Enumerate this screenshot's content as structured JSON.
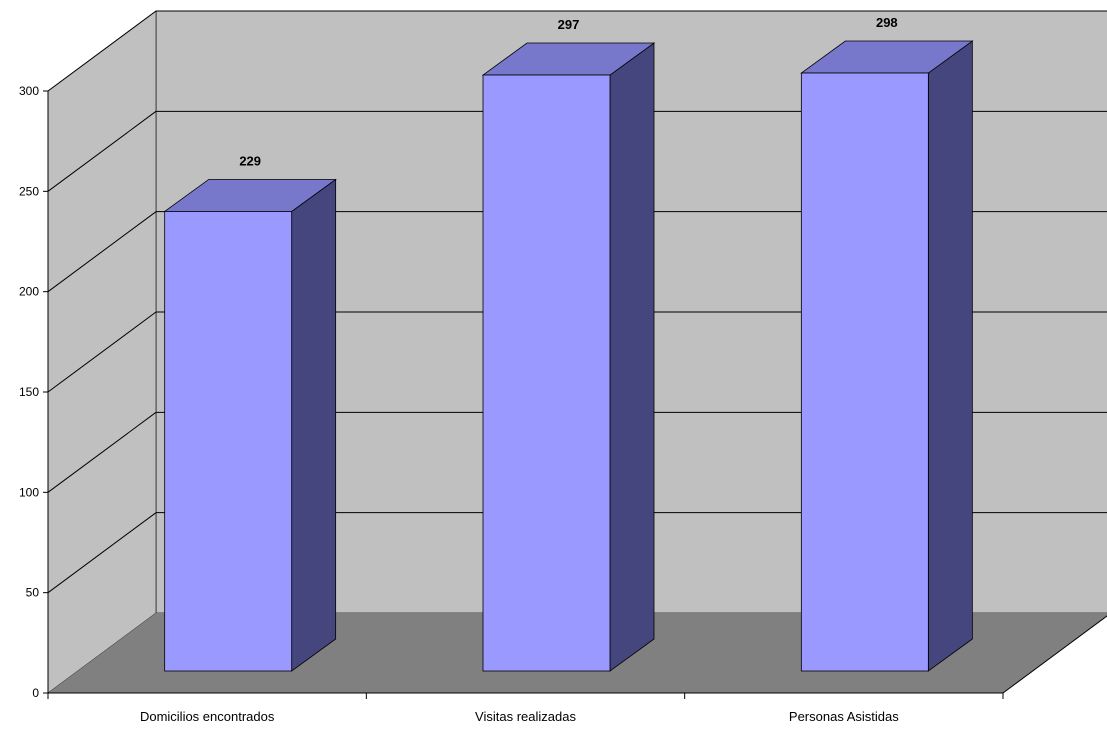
{
  "chart_data": {
    "type": "bar",
    "style": "3d-column",
    "categories": [
      "Domicilios encontrados",
      "Visitas realizadas",
      "Personas Asistidas"
    ],
    "values": [
      229,
      297,
      298
    ],
    "data_labels": [
      "229",
      "297",
      "298"
    ],
    "title": "",
    "xlabel": "",
    "ylabel": "",
    "ylim": [
      0,
      300
    ],
    "yticks": [
      0,
      50,
      100,
      150,
      200,
      250,
      300
    ],
    "ytick_labels": [
      "0",
      "50",
      "100",
      "150",
      "200",
      "250",
      "300"
    ],
    "grid": true,
    "legend": false
  },
  "colors": {
    "back_wall": "#c0c0c0",
    "side_wall": "#c0c0c0",
    "floor": "#808080",
    "bar_front": "#9999ff",
    "bar_top": "#7777cc",
    "bar_side": "#46467f",
    "outline": "#000000",
    "gridline": "#000000"
  }
}
